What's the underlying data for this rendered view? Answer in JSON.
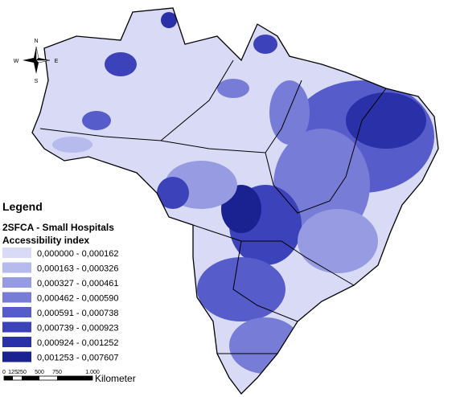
{
  "compass": {
    "north": "N",
    "south": "S",
    "east": "E",
    "west": "W"
  },
  "legend": {
    "title": "Legend",
    "layer": "2SFCA - Small Hospitals",
    "field": "Accessibility index",
    "classes": [
      {
        "label": "0,000000 - 0,000162",
        "color": "#d8daf6"
      },
      {
        "label": "0,000163 - 0,000326",
        "color": "#b6baed"
      },
      {
        "label": "0,000327 - 0,000461",
        "color": "#979ce2"
      },
      {
        "label": "0,000462 - 0,000590",
        "color": "#777dd7"
      },
      {
        "label": "0,000591 - 0,000738",
        "color": "#565cca"
      },
      {
        "label": "0,000739 - 0,000923",
        "color": "#3c42ba"
      },
      {
        "label": "0,000924 - 0,001252",
        "color": "#2a31a8"
      },
      {
        "label": "0,001253 - 0,007607",
        "color": "#1a2190"
      }
    ]
  },
  "scale_bar": {
    "labels": [
      "0",
      "125",
      "250",
      "500",
      "750",
      "1.000"
    ],
    "unit": "Kilometer"
  }
}
